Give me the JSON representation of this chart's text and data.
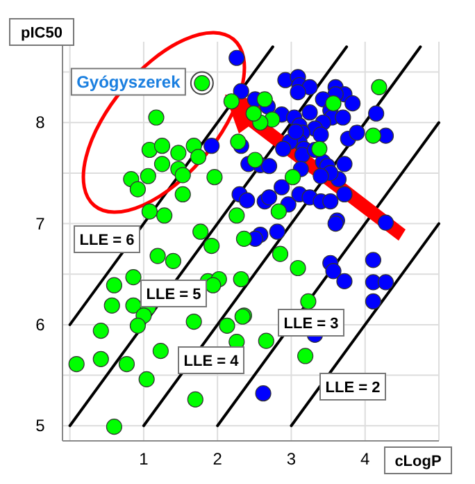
{
  "chart_data": {
    "type": "scatter",
    "xlabel": "cLogP",
    "ylabel": "pIC50",
    "xlim": [
      -0.1,
      5
    ],
    "ylim": [
      4.85,
      8.8
    ],
    "xticks": [
      {
        "value": 0,
        "label": null
      },
      1,
      2,
      3,
      4,
      {
        "value": 5,
        "label": null
      }
    ],
    "yticks": [
      5,
      {
        "value": 5.5,
        "label": null
      },
      6,
      {
        "value": 6.5,
        "label": null
      },
      7,
      {
        "value": 7.5,
        "label": null
      },
      8,
      {
        "value": 8.5,
        "label": null
      }
    ],
    "grid": true,
    "series": [
      {
        "type": "line",
        "color": "#000000",
        "x": [
          0,
          2.75
        ],
        "values": [
          6,
          8.75
        ]
      },
      {
        "type": "line",
        "color": "#000000",
        "x": [
          0,
          3.75
        ],
        "values": [
          5,
          8.75
        ]
      },
      {
        "type": "line",
        "color": "#000000",
        "x": [
          1,
          4.75
        ],
        "values": [
          5,
          8.75
        ]
      },
      {
        "type": "line",
        "color": "#000000",
        "x": [
          2,
          5
        ],
        "values": [
          5,
          8
        ]
      },
      {
        "type": "line",
        "color": "#000000",
        "x": [
          3,
          5
        ],
        "values": [
          5,
          7
        ]
      },
      {
        "color": "#0000ff",
        "marker": "circle",
        "x": [
          2.26,
          2.92,
          3.09,
          3.11,
          3.25,
          3.09,
          3.6,
          3.72,
          3.6,
          3.43,
          3.83,
          2.32,
          2.51,
          2.68,
          2.87,
          3.04,
          3.25,
          3.53,
          3.55,
          3.7,
          3.43,
          3.32,
          3.4,
          3.11,
          3.15,
          3.11,
          3.17,
          2.98,
          3.15,
          3.32,
          2.89,
          3.77,
          3.89,
          4.15,
          4.28,
          2.32,
          1.92,
          2.58,
          2.7,
          3.43,
          3.49,
          3.72,
          3.64,
          3.53,
          2.87,
          2.3,
          2.4,
          2.64,
          2.7,
          2.96,
          3.11,
          3.25,
          3.4,
          3.53,
          3.72,
          3.62,
          4.28,
          3.4,
          3.06,
          3.13,
          2.42,
          2.58,
          2.51,
          2.81,
          3.6,
          3.53,
          3.57,
          3.72,
          4.11,
          4.11,
          4.28,
          4.11,
          3.32,
          2.62
        ],
        "values": [
          8.64,
          8.42,
          8.45,
          8.37,
          8.35,
          8.3,
          8.35,
          8.28,
          8.28,
          8.23,
          8.19,
          8.31,
          8.23,
          8.16,
          8.08,
          8.05,
          8.1,
          8.12,
          8.05,
          8.05,
          8,
          7.94,
          7.88,
          7.97,
          7.9,
          7.81,
          7.74,
          7.81,
          7.68,
          7.73,
          7.74,
          7.84,
          7.9,
          8.09,
          7.87,
          7.77,
          7.77,
          7.58,
          7.57,
          7.61,
          7.57,
          7.59,
          7.44,
          7.5,
          7.36,
          7.29,
          7.23,
          7.22,
          7.26,
          7.19,
          7.29,
          7.26,
          7.22,
          7.22,
          7.29,
          7.03,
          7.01,
          7.47,
          7.91,
          7.54,
          7.59,
          6.89,
          6.85,
          6.92,
          7,
          6.61,
          6.53,
          6.43,
          6.64,
          6.42,
          6.42,
          6.23,
          5.9,
          5.32
        ]
      },
      {
        "color": "#00ff00",
        "marker": "circle",
        "x": [
          1.79,
          1.17,
          1.08,
          1.25,
          1.47,
          1.68,
          1.74,
          1.25,
          1.47,
          0.83,
          1.06,
          0.92,
          1.53,
          1.96,
          1.53,
          1.08,
          1.28,
          1.77,
          2.36,
          2.26,
          2.19,
          2.28,
          1.92,
          1.19,
          1.4,
          0.86,
          0.6,
          1.87,
          2.02,
          1.94,
          2.32,
          0.57,
          0.86,
          1.06,
          1,
          1.68,
          0.92,
          2.13,
          2.36,
          0.42,
          2.26,
          1.23,
          0.42,
          0.77,
          0.09,
          1.04,
          1.7,
          0.6,
          2.85,
          3.09,
          3.23,
          2.34,
          2.66,
          3.19,
          2.64,
          4.19,
          4.11,
          3.57,
          2.74,
          2.58,
          2.49,
          3.38,
          2.51,
          3.02,
          2.83
        ],
        "values": [
          8.39,
          8.05,
          7.73,
          7.77,
          7.7,
          7.77,
          7.66,
          7.59,
          7.54,
          7.44,
          7.47,
          7.34,
          7.48,
          7.46,
          7.29,
          7.12,
          7.08,
          6.92,
          6.85,
          7.08,
          8.21,
          7.81,
          6.78,
          6.68,
          6.63,
          6.47,
          6.39,
          6.43,
          6.45,
          6.39,
          6.45,
          6.19,
          6.19,
          6.17,
          6.09,
          6.03,
          5.99,
          5.99,
          6.09,
          5.94,
          5.83,
          5.74,
          5.66,
          5.61,
          5.61,
          5.46,
          5.26,
          4.99,
          6.7,
          6.56,
          6.23,
          6.08,
          5.84,
          5.69,
          8.23,
          8.35,
          7.87,
          8.19,
          8.03,
          8,
          8.09,
          7.74,
          7.63,
          7.46,
          7.12
        ]
      }
    ],
    "annotations": [
      {
        "text": "Gyógyszerek",
        "x": 1.79,
        "y": 8.39
      },
      "LLE = 6",
      "LLE = 5",
      "LLE = 4",
      "LLE = 3",
      "LLE = 2"
    ]
  }
}
